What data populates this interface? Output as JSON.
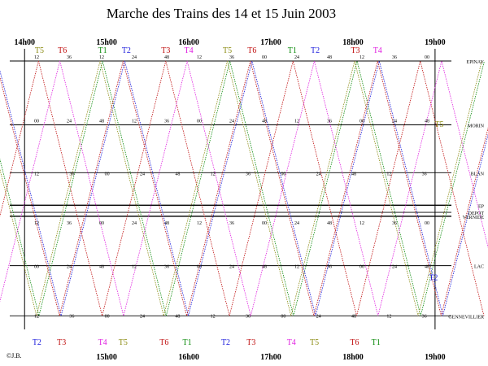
{
  "chart_data": {
    "type": "line",
    "title": "Marche des Trains     des 14 et 15 Juin 2003",
    "x_unit": "hours",
    "xlim": [
      13.75,
      19.1
    ],
    "ylim": [
      0,
      1
    ],
    "time_labels_top": [
      "14h00",
      "15h00",
      "16h00",
      "17h00",
      "18h00",
      "19h00"
    ],
    "time_labels_bottom": [
      "15h00",
      "16h00",
      "17h00",
      "18h00",
      "19h00"
    ],
    "time_label_bottom_partial": "©J.B.",
    "stations": [
      {
        "name": "EPINAY",
        "pos": 0.0
      },
      {
        "name": "MORIN",
        "pos": 0.243
      },
      {
        "name": "BLAN",
        "pos": 0.425
      },
      {
        "name": "EP",
        "pos": 0.549
      },
      {
        "name": "DEPOT",
        "pos": 0.576
      },
      {
        "name": "VERNIDE",
        "pos": 0.591
      },
      {
        "name": "LAC",
        "pos": 0.779
      },
      {
        "name": "GENNEVILLIER",
        "pos": 0.97
      }
    ],
    "train_labels_top": [
      {
        "label": "T5",
        "x": 14.18
      },
      {
        "label": "T6",
        "x": 14.46
      },
      {
        "label": "T1",
        "x": 14.95
      },
      {
        "label": "T2",
        "x": 15.24
      },
      {
        "label": "T3",
        "x": 15.72
      },
      {
        "label": "T4",
        "x": 16.0
      },
      {
        "label": "T5",
        "x": 16.47
      },
      {
        "label": "T6",
        "x": 16.77
      },
      {
        "label": "T1",
        "x": 17.26
      },
      {
        "label": "T2",
        "x": 17.54
      },
      {
        "label": "T3",
        "x": 18.03
      },
      {
        "label": "T4",
        "x": 18.3
      }
    ],
    "train_labels_bottom": [
      {
        "label": "T2",
        "x": 14.15
      },
      {
        "label": "T3",
        "x": 14.45
      },
      {
        "label": "T4",
        "x": 14.95
      },
      {
        "label": "T5",
        "x": 15.2
      },
      {
        "label": "T6",
        "x": 15.7
      },
      {
        "label": "T1",
        "x": 15.98
      },
      {
        "label": "T2",
        "x": 16.45
      },
      {
        "label": "T3",
        "x": 16.76
      },
      {
        "label": "T4",
        "x": 17.25
      },
      {
        "label": "T5",
        "x": 17.53
      },
      {
        "label": "T6",
        "x": 18.02
      },
      {
        "label": "T1",
        "x": 18.28
      }
    ],
    "train_labels_side": [
      {
        "label": "T5",
        "x": 19.05,
        "pos": 0.25
      },
      {
        "label": "T2",
        "x": 18.98,
        "pos": 0.835
      }
    ],
    "series": [
      {
        "name": "T1",
        "color": "#0a8a0a",
        "offset": 14.95
      },
      {
        "name": "T2",
        "color": "#1a1adc",
        "offset": 15.22
      },
      {
        "name": "T3",
        "color": "#c01010",
        "offset": 15.72
      },
      {
        "name": "T4",
        "color": "#e020e0",
        "offset": 15.98
      },
      {
        "name": "T5",
        "color": "#8a8a10",
        "offset": 16.47
      },
      {
        "name": "T6",
        "color": "#c01010",
        "offset": 16.75
      }
    ],
    "half_cycle_hours": 0.775,
    "minute_marks_top": [
      "12",
      "36",
      "12",
      "24",
      "48",
      "12",
      "36",
      "00",
      "24",
      "48",
      "12",
      "36",
      "00"
    ],
    "minute_marks_morin": [
      "00",
      "24",
      "48",
      "12",
      "36",
      "00",
      "24",
      "48",
      "12",
      "36",
      "00",
      "24",
      "48"
    ],
    "minute_marks_blan": [
      "12",
      "36",
      "00",
      "24",
      "48",
      "12",
      "36",
      "00",
      "24",
      "48",
      "12",
      "36"
    ],
    "minute_marks_vernide": [
      "12",
      "36",
      "00",
      "24",
      "48",
      "12",
      "36",
      "00",
      "24",
      "48",
      "12",
      "36",
      "00"
    ],
    "minute_marks_lac": [
      "00",
      "24",
      "48",
      "12",
      "36",
      "00",
      "24",
      "48",
      "12",
      "36",
      "00",
      "24",
      "48"
    ],
    "minute_marks_bottom": [
      "12",
      "36",
      "00",
      "24",
      "48",
      "12",
      "36",
      "00",
      "24",
      "48",
      "12",
      "36"
    ]
  }
}
